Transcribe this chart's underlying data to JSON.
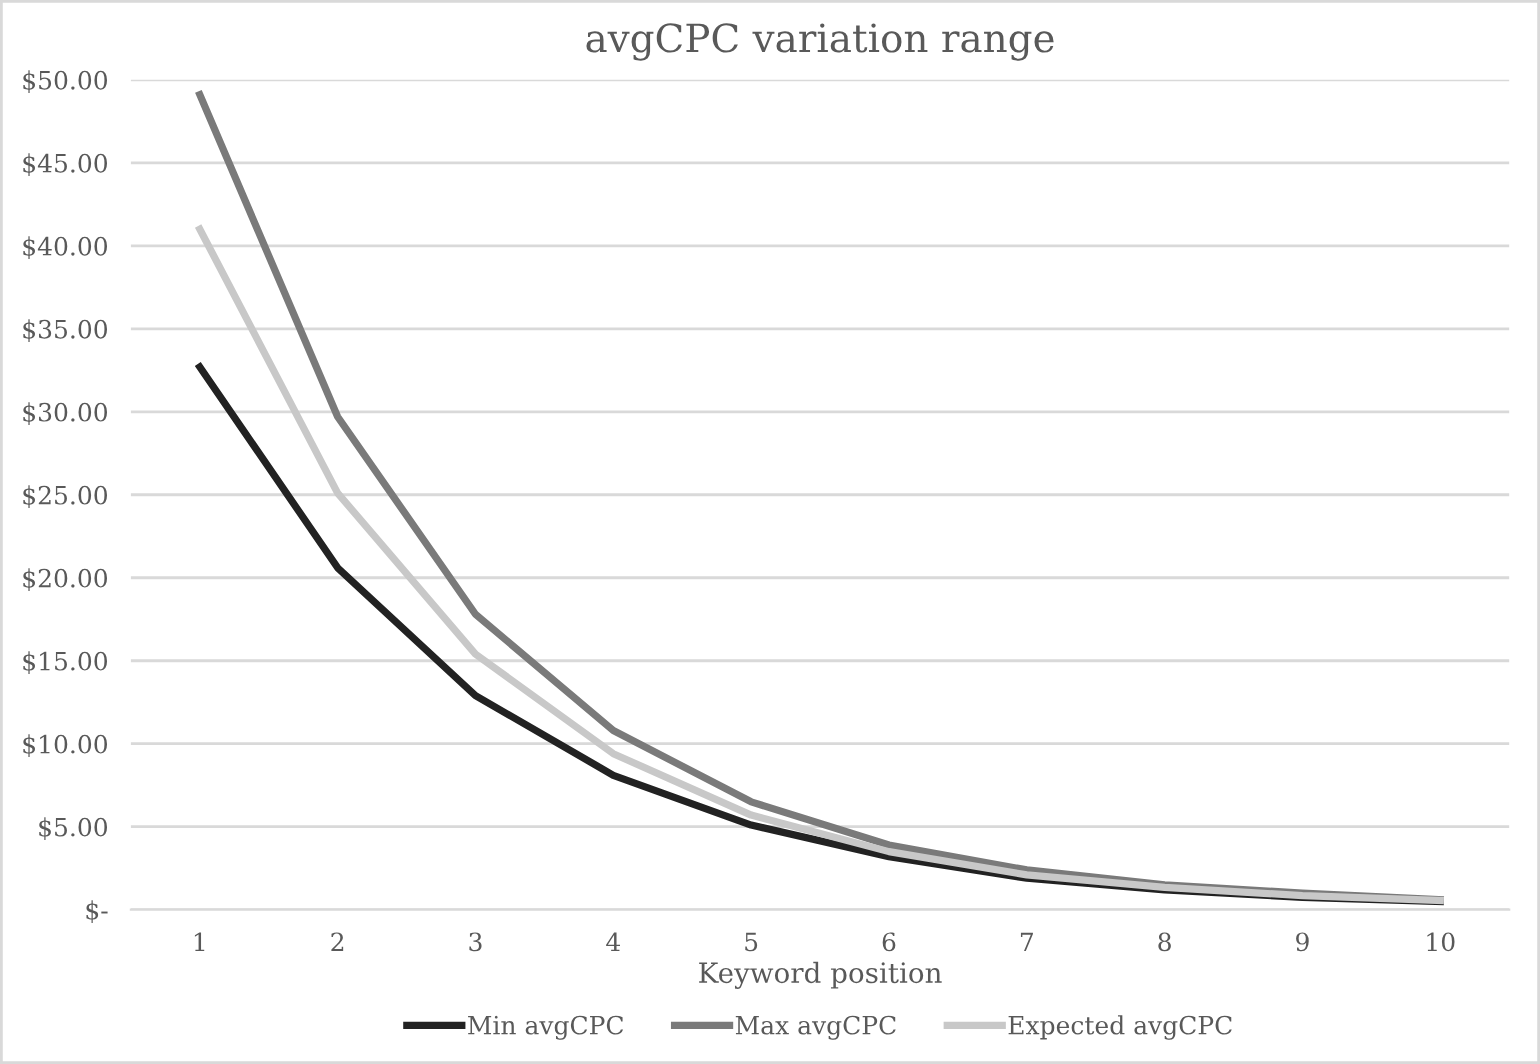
{
  "chart_data": {
    "type": "line",
    "title": "avgCPC variation range",
    "xlabel": "Keyword position",
    "categories": [
      "1",
      "2",
      "3",
      "4",
      "5",
      "6",
      "7",
      "8",
      "9",
      "10"
    ],
    "series": [
      {
        "name": "Min avgCPC",
        "color": "#222222",
        "values": [
          32.7,
          20.6,
          12.9,
          8.1,
          5.1,
          3.2,
          1.9,
          1.2,
          0.75,
          0.5
        ]
      },
      {
        "name": "Max avgCPC",
        "color": "#7a7a7a",
        "values": [
          49.1,
          29.7,
          17.8,
          10.8,
          6.5,
          3.9,
          2.4,
          1.5,
          1.0,
          0.6
        ]
      },
      {
        "name": "Expected avgCPC",
        "color": "#c8c8c8",
        "values": [
          41.0,
          25.1,
          15.4,
          9.4,
          5.7,
          3.5,
          2.1,
          1.35,
          0.85,
          0.55
        ]
      }
    ],
    "ylim": [
      0,
      50
    ],
    "yticks": [
      {
        "value": 0,
        "label": "$-"
      },
      {
        "value": 5,
        "label": "$5.00"
      },
      {
        "value": 10,
        "label": "$10.00"
      },
      {
        "value": 15,
        "label": "$15.00"
      },
      {
        "value": 20,
        "label": "$20.00"
      },
      {
        "value": 25,
        "label": "$25.00"
      },
      {
        "value": 30,
        "label": "$30.00"
      },
      {
        "value": 35,
        "label": "$35.00"
      },
      {
        "value": 40,
        "label": "$40.00"
      },
      {
        "value": 45,
        "label": "$45.00"
      },
      {
        "value": 50,
        "label": "$50.00"
      }
    ],
    "grid": "y",
    "legend": "bottom",
    "marker": "none",
    "line_style": "solid"
  }
}
